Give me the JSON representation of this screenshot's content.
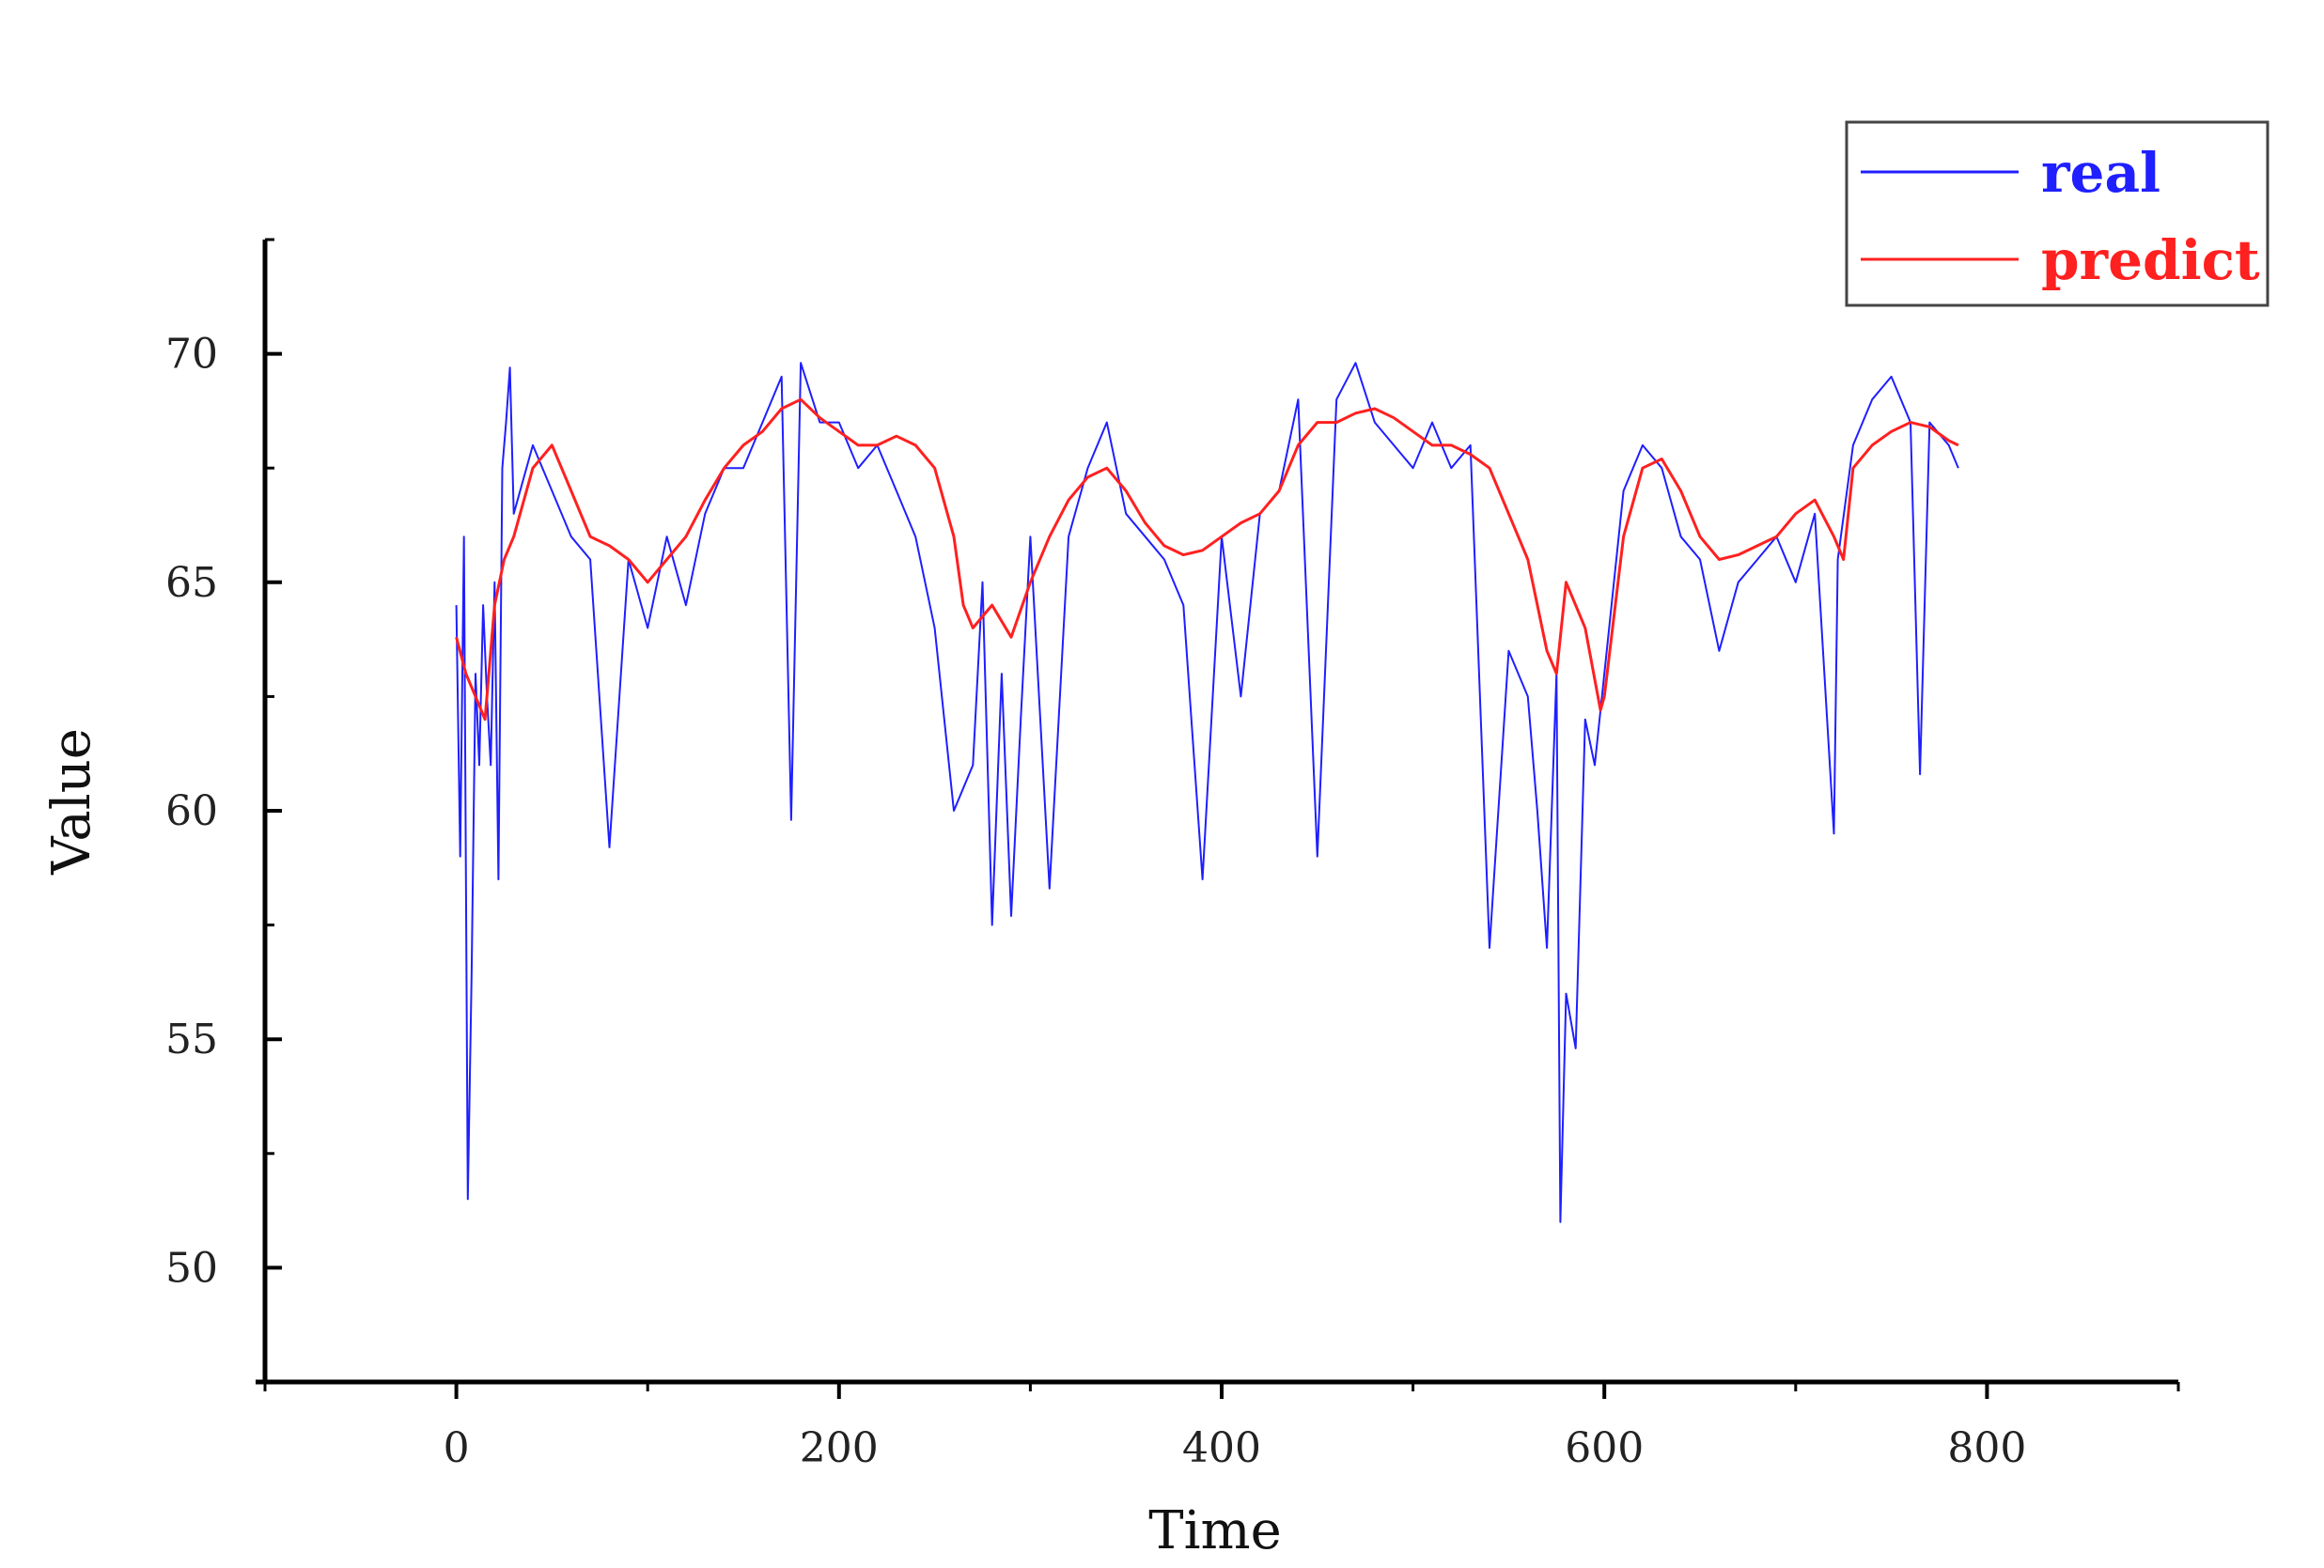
{
  "chart_data": {
    "type": "line",
    "title": "",
    "xlabel": "Time",
    "ylabel": "Value",
    "xlim": [
      -100,
      900
    ],
    "ylim": [
      47.5,
      72.5
    ],
    "x_ticks": [
      0,
      200,
      400,
      600,
      800
    ],
    "y_ticks": [
      50,
      55,
      60,
      65,
      70
    ],
    "grid": false,
    "legend_position": "top-right",
    "series": [
      {
        "name": "real",
        "color": "#1f1fff",
        "x": [
          0,
          2,
          4,
          6,
          8,
          10,
          12,
          14,
          16,
          18,
          20,
          22,
          24,
          26,
          28,
          30,
          40,
          50,
          60,
          70,
          80,
          90,
          100,
          110,
          120,
          130,
          140,
          150,
          160,
          170,
          175,
          180,
          190,
          200,
          210,
          220,
          230,
          240,
          250,
          260,
          270,
          275,
          280,
          285,
          290,
          295,
          300,
          310,
          320,
          330,
          340,
          350,
          360,
          370,
          380,
          390,
          400,
          410,
          420,
          430,
          440,
          450,
          460,
          470,
          480,
          490,
          500,
          510,
          520,
          530,
          540,
          550,
          560,
          565,
          570,
          575,
          577,
          580,
          585,
          590,
          595,
          600,
          610,
          620,
          630,
          640,
          650,
          660,
          670,
          680,
          690,
          700,
          710,
          720,
          722,
          730,
          740,
          750,
          760,
          765,
          770,
          780,
          785
        ],
        "y": [
          64.5,
          59.0,
          66.0,
          51.5,
          56.5,
          63.0,
          61.0,
          64.5,
          62.5,
          61.0,
          65.0,
          58.5,
          67.5,
          68.5,
          69.7,
          66.5,
          68.0,
          67.0,
          66.0,
          65.5,
          59.2,
          65.5,
          64.0,
          66.0,
          64.5,
          66.5,
          67.5,
          67.5,
          68.5,
          69.5,
          59.8,
          69.8,
          68.5,
          68.5,
          67.5,
          68.0,
          67.0,
          66.0,
          64.0,
          60.0,
          61.0,
          65.0,
          57.5,
          63.0,
          57.7,
          62.0,
          66.0,
          58.3,
          66.0,
          67.5,
          68.5,
          66.5,
          66.0,
          65.5,
          64.5,
          58.5,
          66.0,
          62.5,
          66.5,
          67.0,
          69.0,
          59.0,
          69.0,
          69.8,
          68.5,
          68.0,
          67.5,
          68.5,
          67.5,
          68.0,
          57.0,
          63.5,
          62.5,
          60.0,
          57.0,
          63.0,
          51.0,
          56.0,
          54.8,
          62.0,
          61.0,
          63.0,
          67.0,
          68.0,
          67.5,
          66.0,
          65.5,
          63.5,
          65.0,
          65.5,
          66.0,
          65.0,
          66.5,
          59.5,
          65.5,
          68.0,
          69.0,
          69.5,
          68.5,
          60.8,
          68.5,
          68.0,
          67.5
        ]
      },
      {
        "name": "predict",
        "color": "#ff2020",
        "x": [
          0,
          5,
          10,
          15,
          20,
          25,
          30,
          40,
          50,
          60,
          70,
          80,
          90,
          100,
          110,
          120,
          130,
          140,
          150,
          160,
          170,
          180,
          190,
          200,
          210,
          220,
          230,
          240,
          250,
          260,
          265,
          270,
          280,
          290,
          300,
          310,
          320,
          330,
          340,
          350,
          360,
          370,
          380,
          390,
          400,
          410,
          420,
          430,
          440,
          450,
          460,
          470,
          480,
          490,
          500,
          510,
          520,
          530,
          540,
          550,
          560,
          570,
          575,
          580,
          590,
          598,
          600,
          610,
          620,
          630,
          640,
          650,
          660,
          670,
          680,
          690,
          700,
          710,
          720,
          725,
          730,
          740,
          750,
          760,
          770,
          780,
          785
        ],
        "y": [
          63.8,
          63.0,
          62.5,
          62.0,
          64.5,
          65.5,
          66.0,
          67.5,
          68.0,
          67.0,
          66.0,
          65.8,
          65.5,
          65.0,
          65.5,
          66.0,
          66.8,
          67.5,
          68.0,
          68.3,
          68.8,
          69.0,
          68.6,
          68.3,
          68.0,
          68.0,
          68.2,
          68.0,
          67.5,
          66.0,
          64.5,
          64.0,
          64.5,
          63.8,
          65.0,
          66.0,
          66.8,
          67.3,
          67.5,
          67.0,
          66.3,
          65.8,
          65.6,
          65.7,
          66.0,
          66.3,
          66.5,
          67.0,
          68.0,
          68.5,
          68.5,
          68.7,
          68.8,
          68.6,
          68.3,
          68.0,
          68.0,
          67.8,
          67.5,
          66.5,
          65.5,
          63.5,
          63.0,
          65.0,
          64.0,
          62.2,
          62.5,
          66.0,
          67.5,
          67.7,
          67.0,
          66.0,
          65.5,
          65.6,
          65.8,
          66.0,
          66.5,
          66.8,
          66.0,
          65.5,
          67.5,
          68.0,
          68.3,
          68.5,
          68.4,
          68.1,
          68.0
        ]
      }
    ]
  }
}
